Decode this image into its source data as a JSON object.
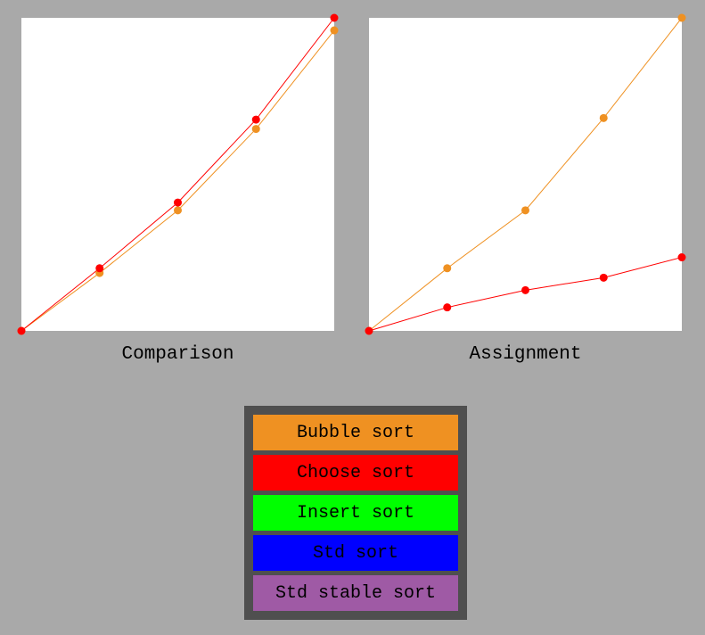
{
  "chart_data": [
    {
      "type": "line",
      "title": "",
      "xlabel": "Comparison",
      "ylabel": "",
      "x": [
        0,
        1,
        2,
        3,
        4
      ],
      "xlim": [
        0,
        4
      ],
      "ylim": [
        0,
        100
      ],
      "grid": false,
      "series": [
        {
          "name": "Bubble sort",
          "color": "#ef9122",
          "values": [
            0,
            18.5,
            38.5,
            64.5,
            96
          ]
        },
        {
          "name": "Choose sort",
          "color": "#ff0000",
          "values": [
            0,
            20,
            41,
            67.5,
            100
          ]
        }
      ]
    },
    {
      "type": "line",
      "title": "",
      "xlabel": "Assignment",
      "ylabel": "",
      "x": [
        0,
        1,
        2,
        3,
        4
      ],
      "xlim": [
        0,
        4
      ],
      "ylim": [
        0,
        100
      ],
      "grid": false,
      "series": [
        {
          "name": "Bubble sort",
          "color": "#ef9122",
          "values": [
            0,
            20,
            38.5,
            68,
            100
          ]
        },
        {
          "name": "Choose sort",
          "color": "#ff0000",
          "values": [
            0,
            7.5,
            13,
            17,
            23.5
          ]
        }
      ]
    }
  ],
  "captions": {
    "comparison": "Comparison",
    "assignment": "Assignment"
  },
  "legend": {
    "items": [
      {
        "label": "Bubble sort",
        "color": "#ef9122"
      },
      {
        "label": "Choose sort",
        "color": "#ff0000"
      },
      {
        "label": "Insert sort",
        "color": "#00ff00"
      },
      {
        "label": "Std sort",
        "color": "#0000ff"
      },
      {
        "label": "Std stable sort",
        "color": "#9f5aa5"
      }
    ]
  }
}
